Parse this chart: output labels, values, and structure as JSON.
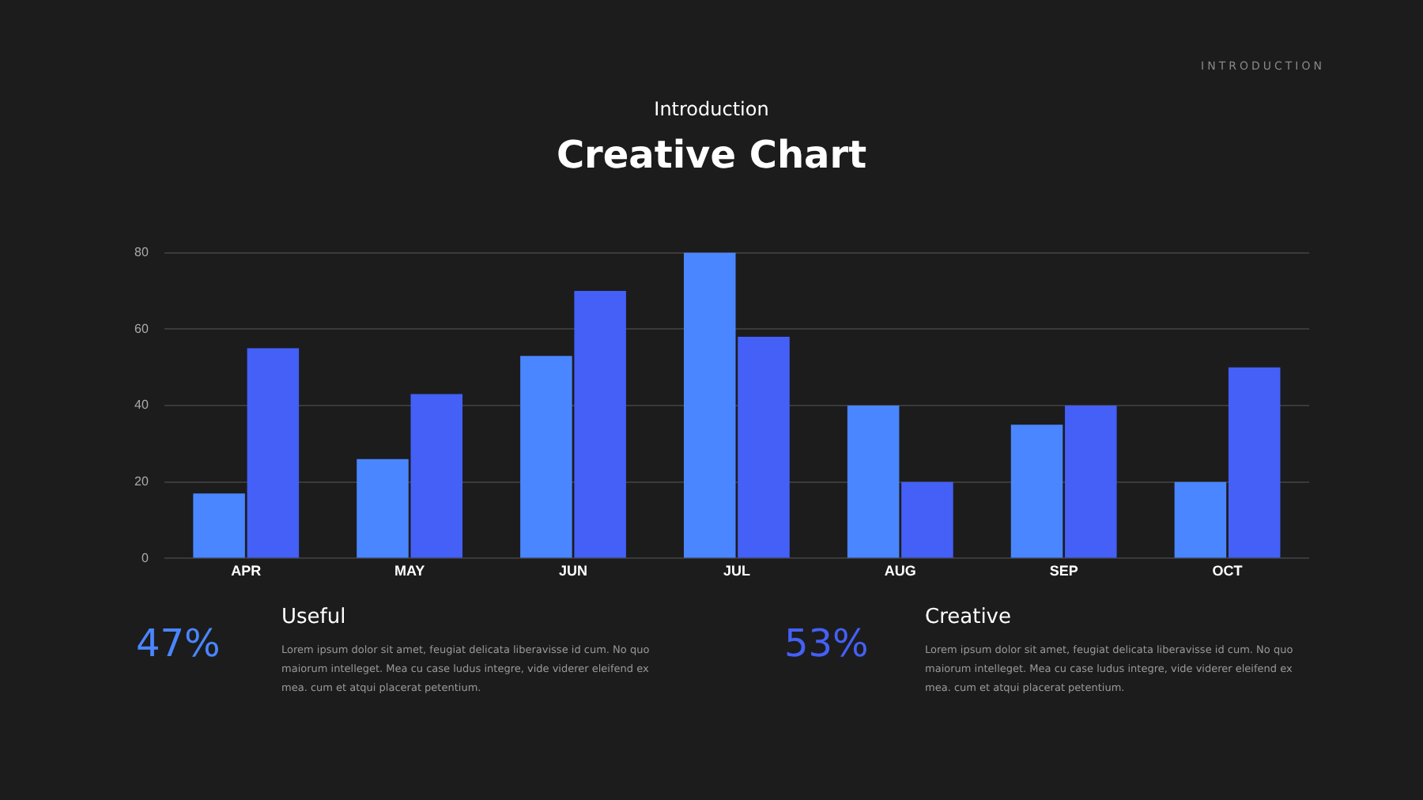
{
  "chart_data": {
    "type": "bar",
    "title": "Creative Chart",
    "subtitle": "Introduction",
    "categories": [
      "APR",
      "MAY",
      "JUN",
      "JUL",
      "AUG",
      "SEP",
      "OCT"
    ],
    "series": [
      {
        "color": "#4a86ff",
        "values": [
          17,
          26,
          53,
          80,
          40,
          35,
          20
        ]
      },
      {
        "color": "#4460f7",
        "values": [
          55,
          43,
          70,
          58,
          20,
          40,
          50
        ]
      }
    ],
    "ylim": [
      0,
      80
    ],
    "yticks": [
      0,
      20,
      40,
      60,
      80
    ],
    "grid": "y",
    "legend": false,
    "annotations": [
      "INTRODUCTION",
      "47%",
      "Useful",
      "Lorem ipsum dolor sit amet, feugiat delicata liberavisse id cum. No quo maiorum intelleget. Mea cu case ludus integre, vide viderer eleifend ex mea. cum et atqui placerat petentium.",
      "53%",
      "Creative",
      "Lorem ipsum dolor sit amet, feugiat delicata liberavisse id cum. No quo maiorum intelleget. Mea cu case ludus integre, vide viderer eleifend ex mea. cum et atqui placerat petentium."
    ]
  }
}
